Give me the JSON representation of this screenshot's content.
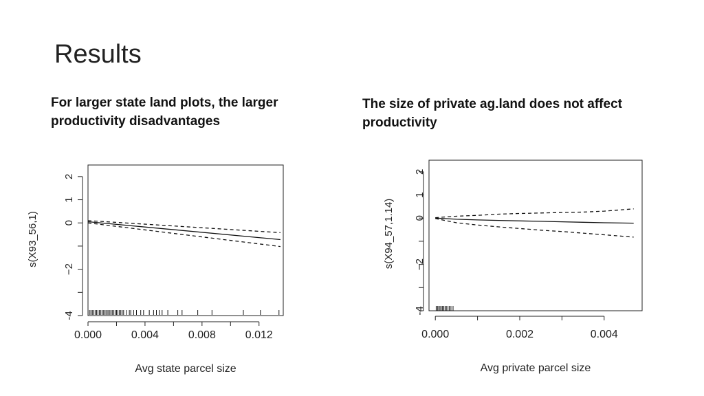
{
  "slide": {
    "title": "Results"
  },
  "captions": {
    "left": "For larger state land plots, the larger productivity disadvantages",
    "right": "The size of private ag.land does not affect productivity"
  },
  "chart_data": [
    {
      "type": "line",
      "xlabel": "Avg state parcel size",
      "ylabel": "s(X93_56,1)",
      "xlim": [
        0.0,
        0.0137
      ],
      "ylim": [
        -4.0,
        2.5
      ],
      "x_ticks": [
        0.0,
        0.002,
        0.004,
        0.006,
        0.008,
        0.01,
        0.012
      ],
      "x_tick_labels": [
        {
          "value": 0.0,
          "label": "0.000"
        },
        {
          "value": 0.004,
          "label": "0.004"
        },
        {
          "value": 0.008,
          "label": "0.008"
        },
        {
          "value": 0.012,
          "label": "0.012"
        }
      ],
      "y_ticks": [
        -4,
        -3,
        -2,
        -1,
        0,
        1,
        2
      ],
      "y_tick_labels": [
        {
          "value": -4,
          "label": "-4"
        },
        {
          "value": -2,
          "label": "−2"
        },
        {
          "value": 0,
          "label": "0"
        },
        {
          "value": 1,
          "label": "1"
        },
        {
          "value": 2,
          "label": "2"
        }
      ],
      "grid": false,
      "series": [
        {
          "role": "fit",
          "style": "solid",
          "x": [
            0.0,
            0.0135
          ],
          "y": [
            0.05,
            -0.72
          ]
        },
        {
          "role": "upper",
          "style": "dashed",
          "x": [
            0.0,
            0.0135
          ],
          "y": [
            0.1,
            -0.42
          ]
        },
        {
          "role": "lower",
          "style": "dashed",
          "x": [
            0.0,
            0.0135
          ],
          "y": [
            0.0,
            -1.02
          ]
        }
      ],
      "rug": [
        0.0001,
        0.0002,
        0.0003,
        0.0004,
        0.0005,
        0.0006,
        0.0007,
        0.0008,
        0.0009,
        0.001,
        0.0011,
        0.0012,
        0.0013,
        0.0014,
        0.0015,
        0.0016,
        0.0017,
        0.0018,
        0.0019,
        0.002,
        0.0021,
        0.0022,
        0.0023,
        0.0024,
        0.0025,
        0.0027,
        0.0029,
        0.003,
        0.0032,
        0.0034,
        0.0037,
        0.0039,
        0.0043,
        0.0046,
        0.0048,
        0.005,
        0.0052,
        0.0056,
        0.0063,
        0.0066,
        0.0077,
        0.0087,
        0.0109,
        0.0121,
        0.0134
      ]
    },
    {
      "type": "line",
      "xlabel": "Avg private parcel size",
      "ylabel": "s(X94_57,1.14)",
      "xlim": [
        -0.00015,
        0.0049
      ],
      "ylim": [
        -4.0,
        2.5
      ],
      "x_ticks": [
        0.0,
        0.001,
        0.002,
        0.003,
        0.004
      ],
      "x_tick_labels": [
        {
          "value": 0.0,
          "label": "0.000"
        },
        {
          "value": 0.002,
          "label": "0.002"
        },
        {
          "value": 0.004,
          "label": "0.004"
        }
      ],
      "y_ticks": [
        -4,
        -3,
        -2,
        -1,
        0,
        1,
        2
      ],
      "y_tick_labels": [
        {
          "value": -4,
          "label": "-4"
        },
        {
          "value": -2,
          "label": "−2"
        },
        {
          "value": 0,
          "label": "0"
        },
        {
          "value": 1,
          "label": "1"
        },
        {
          "value": 2,
          "label": "2"
        }
      ],
      "grid": false,
      "series": [
        {
          "role": "fit",
          "style": "solid",
          "x": [
            0.0,
            0.0005,
            0.001,
            0.0015,
            0.002,
            0.0025,
            0.003,
            0.0035,
            0.004,
            0.0047
          ],
          "y": [
            0.0,
            -0.05,
            -0.08,
            -0.1,
            -0.12,
            -0.14,
            -0.16,
            -0.18,
            -0.2,
            -0.22
          ]
        },
        {
          "role": "upper",
          "style": "dashed",
          "x": [
            0.0,
            0.0005,
            0.001,
            0.0015,
            0.002,
            0.0025,
            0.003,
            0.0035,
            0.004,
            0.0047
          ],
          "y": [
            0.02,
            0.08,
            0.12,
            0.17,
            0.2,
            0.22,
            0.24,
            0.26,
            0.3,
            0.4
          ]
        },
        {
          "role": "lower",
          "style": "dashed",
          "x": [
            0.0,
            0.0005,
            0.001,
            0.0015,
            0.002,
            0.0025,
            0.003,
            0.0035,
            0.004,
            0.0047
          ],
          "y": [
            -0.02,
            -0.2,
            -0.3,
            -0.38,
            -0.45,
            -0.52,
            -0.58,
            -0.65,
            -0.72,
            -0.82
          ]
        }
      ],
      "rug": [
        2e-05,
        5e-05,
        8e-05,
        0.00011,
        0.00014,
        0.00017,
        0.0002,
        0.00023,
        0.00026,
        0.0003,
        0.00033,
        0.00037,
        0.00042
      ]
    }
  ]
}
